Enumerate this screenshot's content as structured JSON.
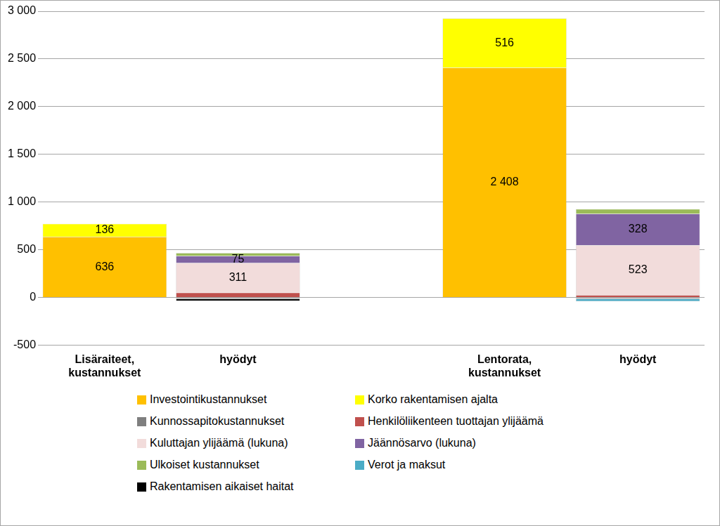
{
  "chart_data": {
    "type": "bar",
    "stacked": true,
    "grid": true,
    "legend": "bottom",
    "categories": [
      [
        "Lisäraiteet,",
        "kustannukset"
      ],
      "hyödyt",
      null,
      [
        "Lentorata,",
        "kustannukset"
      ],
      "hyödyt"
    ],
    "ylim": [
      -500,
      3000
    ],
    "yticks": [
      -500,
      0,
      500,
      {
        "value": 1000,
        "label": "1 000"
      },
      {
        "value": 1500,
        "label": "1 500"
      },
      {
        "value": 2000,
        "label": "2 000"
      },
      {
        "value": 2500,
        "label": "2 500"
      },
      {
        "value": 3000,
        "label": "3 000"
      }
    ],
    "series": [
      {
        "name": "Investointikustannukset",
        "color": "#ffc000",
        "values": [
          636,
          null,
          null,
          2408,
          null
        ],
        "data_labels": true,
        "value_labels": [
          "636",
          null,
          null,
          "2 408",
          null
        ]
      },
      {
        "name": "Korko rakentamisen ajalta",
        "color": "#ffff00",
        "values": [
          136,
          null,
          null,
          516,
          null
        ],
        "data_labels": true
      },
      {
        "name": "Kunnossapitokustannukset",
        "color": "#7f7f7f",
        "values": [
          null,
          -15,
          null,
          null,
          -15
        ]
      },
      {
        "name": "Henkilöliikenteen tuottajan ylijäämä",
        "color": "#c0504d",
        "values": [
          null,
          50,
          null,
          null,
          25
        ]
      },
      {
        "name": "Kuluttajan ylijäämä (lukuna)",
        "color": "#f2dcdb",
        "values": [
          null,
          311,
          null,
          null,
          523
        ],
        "data_labels": true
      },
      {
        "name": "Jäännösarvo (lukuna)",
        "color": "#8064a2",
        "values": [
          null,
          75,
          null,
          null,
          328
        ],
        "data_labels": true
      },
      {
        "name": "Ulkoiset kustannukset",
        "color": "#9bbb59",
        "values": [
          null,
          30,
          null,
          null,
          50
        ]
      },
      {
        "name": "Verot ja maksut",
        "color": "#4bacc6",
        "values": [
          null,
          null,
          null,
          null,
          -25
        ]
      },
      {
        "name": "Rakentamisen aikaiset haitat",
        "color": "#000000",
        "values": [
          null,
          -20,
          null,
          null,
          null
        ]
      }
    ]
  }
}
